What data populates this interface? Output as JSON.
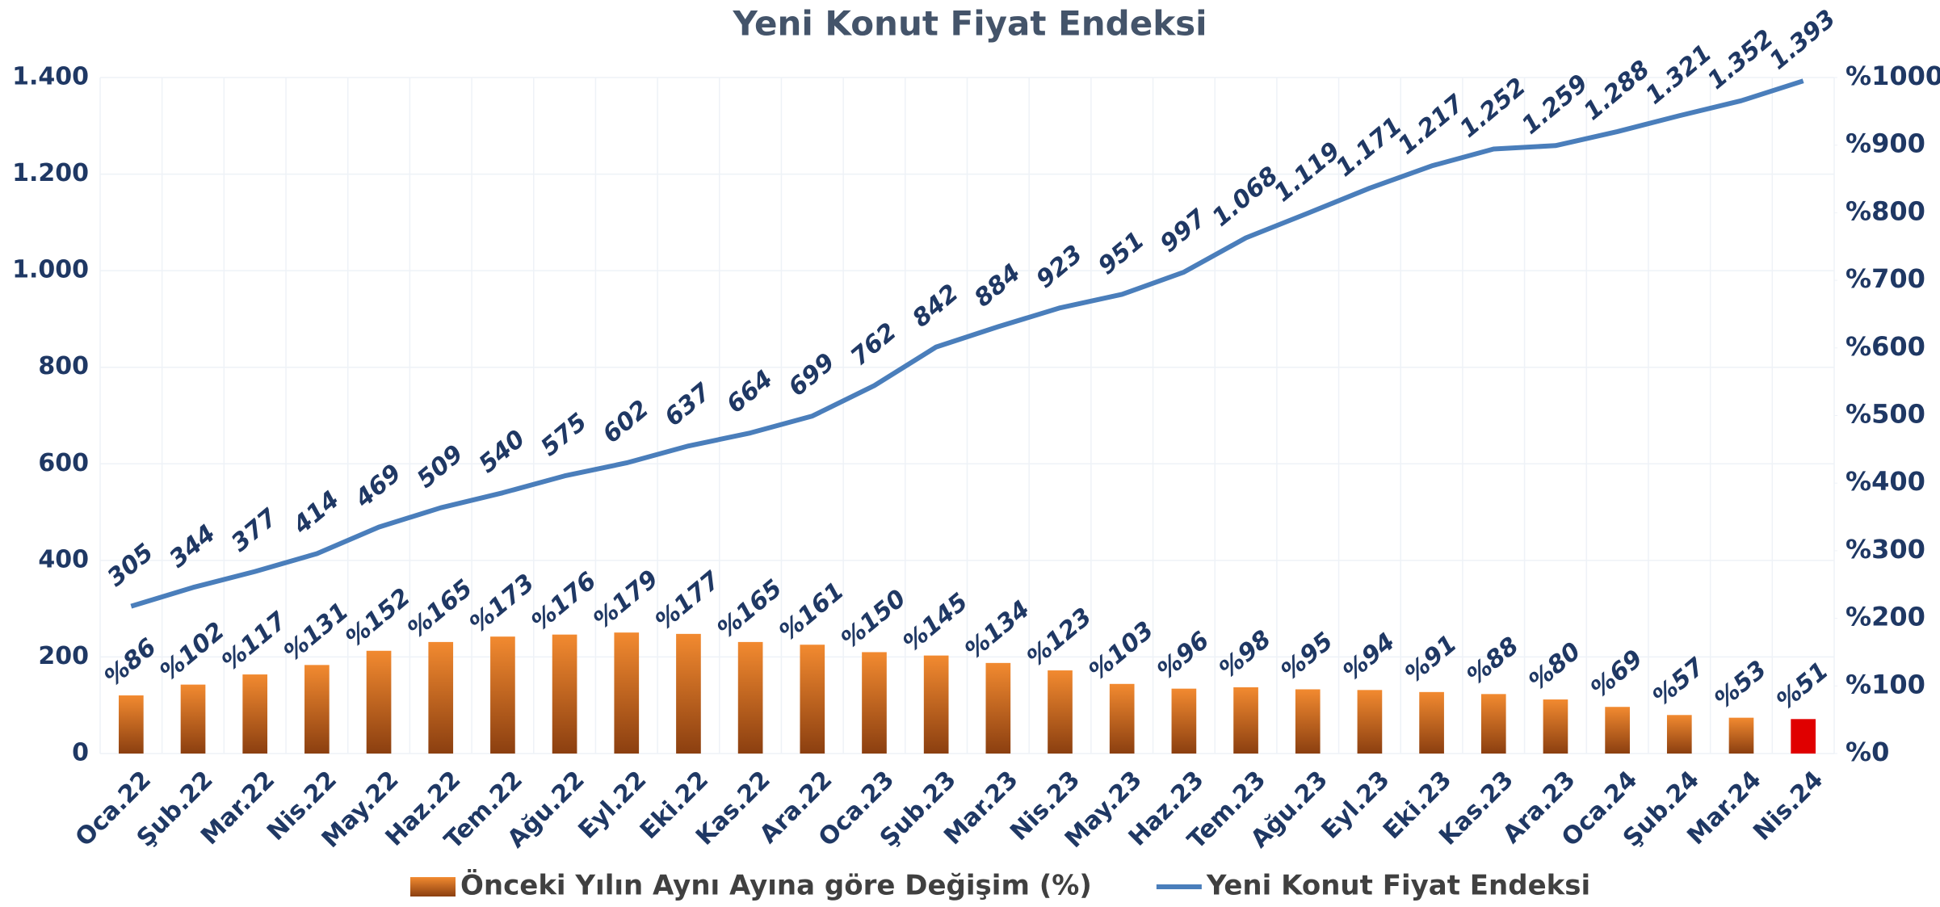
{
  "chart_data": {
    "type": "combo",
    "title": "Yeni Konut Fiyat Endeksi",
    "categories": [
      "Oca.22",
      "Şub.22",
      "Mar.22",
      "Nis.22",
      "May.22",
      "Haz.22",
      "Tem.22",
      "Ağu.22",
      "Eyl.22",
      "Eki.22",
      "Kas.22",
      "Ara.22",
      "Oca.23",
      "Şub.23",
      "Mar.23",
      "Nis.23",
      "May.23",
      "Haz.23",
      "Tem.23",
      "Ağu.23",
      "Eyl.23",
      "Eki.23",
      "Kas.23",
      "Ara.23",
      "Oca.24",
      "Şub.24",
      "Mar.24",
      "Nis.24"
    ],
    "series": [
      {
        "name": "Önceki Yılın Aynı Ayına göre Değişim (%)",
        "type": "bar",
        "axis": "y2",
        "color": "#e87722",
        "colors": [
          "#e87722",
          "#e87722",
          "#e87722",
          "#e87722",
          "#e87722",
          "#e87722",
          "#e87722",
          "#e87722",
          "#e87722",
          "#e87722",
          "#e87722",
          "#e87722",
          "#e87722",
          "#e87722",
          "#e87722",
          "#e87722",
          "#e87722",
          "#e87722",
          "#e87722",
          "#e87722",
          "#e87722",
          "#e87722",
          "#e87722",
          "#e87722",
          "#e87722",
          "#e87722",
          "#e87722",
          "#e00000"
        ],
        "values": [
          86,
          102,
          117,
          131,
          152,
          165,
          173,
          176,
          179,
          177,
          165,
          161,
          150,
          145,
          134,
          123,
          103,
          96,
          98,
          95,
          94,
          91,
          88,
          80,
          69,
          57,
          53,
          51
        ],
        "value_labels": [
          "%86",
          "%102",
          "%117",
          "%131",
          "%152",
          "%165",
          "%173",
          "%176",
          "%179",
          "%177",
          "%165",
          "%161",
          "%150",
          "%145",
          "%134",
          "%123",
          "%103",
          "%96",
          "%98",
          "%95",
          "%94",
          "%91",
          "%88",
          "%80",
          "%69",
          "%57",
          "%53",
          "%51"
        ]
      },
      {
        "name": "Yeni Konut Fiyat Endeksi",
        "type": "line",
        "axis": "y",
        "color": "#4a7ebb",
        "values": [
          305,
          344,
          377,
          414,
          469,
          509,
          540,
          575,
          602,
          637,
          664,
          699,
          762,
          842,
          884,
          923,
          951,
          997,
          1068,
          1119,
          1171,
          1217,
          1252,
          1259,
          1288,
          1321,
          1352,
          1393
        ],
        "value_labels": [
          "305",
          "344",
          "377",
          "414",
          "469",
          "509",
          "540",
          "575",
          "602",
          "637",
          "664",
          "699",
          "762",
          "842",
          "884",
          "923",
          "951",
          "997",
          "1.068",
          "1.119",
          "1.171",
          "1.217",
          "1.252",
          "1.259",
          "1.288",
          "1.321",
          "1.352",
          "1.393"
        ]
      }
    ],
    "ylim": [
      0,
      1400
    ],
    "yticks": [
      0,
      200,
      400,
      600,
      800,
      {
        "value": 1000,
        "label": "1.000"
      },
      {
        "value": 1200,
        "label": "1.200"
      },
      {
        "value": 1400,
        "label": "1.400"
      }
    ],
    "y2lim": [
      0,
      1000
    ],
    "y2ticks": [
      {
        "value": 0,
        "label": "%0"
      },
      {
        "value": 100,
        "label": "%100"
      },
      {
        "value": 200,
        "label": "%200"
      },
      {
        "value": 300,
        "label": "%300"
      },
      {
        "value": 400,
        "label": "%400"
      },
      {
        "value": 500,
        "label": "%500"
      },
      {
        "value": 600,
        "label": "%600"
      },
      {
        "value": 700,
        "label": "%700"
      },
      {
        "value": 800,
        "label": "%800"
      },
      {
        "value": 900,
        "label": "%900"
      },
      {
        "value": 1000,
        "label": "%1000"
      }
    ],
    "grid": true,
    "legend": "bottom"
  }
}
